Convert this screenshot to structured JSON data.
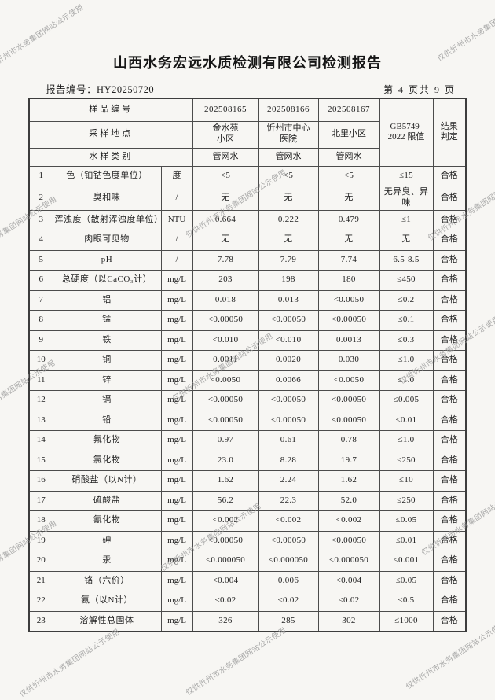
{
  "title": "山西水务宏远水质检测有限公司检测报告",
  "report": {
    "label": "报告编号：",
    "number": "HY20250720"
  },
  "page_indicator": "第 4 页共 9 页",
  "watermark": {
    "text": "仅供忻州市水务集团网站公示使用"
  },
  "table": {
    "header": {
      "sample_id_label": "样品编号",
      "sampling_site_label": "采样地点",
      "water_type_label": "水样类别",
      "sample_ids": [
        "202508165",
        "202508166",
        "202508167"
      ],
      "sites": [
        "金水苑\n小区",
        "忻州市中心\n医院",
        "北里小区"
      ],
      "types": [
        "管网水",
        "管网水",
        "管网水"
      ],
      "limit_header": "GB5749-\n2022 限值",
      "verdict_header": "结果\n判定"
    },
    "rows": [
      {
        "no": "1",
        "name": "色（铂钴色度单位）",
        "unit": "度",
        "values": [
          "<5",
          "<5",
          "<5"
        ],
        "limit": "≤15",
        "verdict": "合格"
      },
      {
        "no": "2",
        "name": "臭和味",
        "unit": "/",
        "values": [
          "无",
          "无",
          "无"
        ],
        "limit": "无异臭、异味",
        "verdict": "合格"
      },
      {
        "no": "3",
        "name": "浑浊度（散射浑浊度单位）",
        "unit": "NTU",
        "values": [
          "0.664",
          "0.222",
          "0.479"
        ],
        "limit": "≤1",
        "verdict": "合格"
      },
      {
        "no": "4",
        "name": "肉眼可见物",
        "unit": "/",
        "values": [
          "无",
          "无",
          "无"
        ],
        "limit": "无",
        "verdict": "合格"
      },
      {
        "no": "5",
        "name": "pH",
        "unit": "/",
        "values": [
          "7.78",
          "7.79",
          "7.74"
        ],
        "limit": "6.5-8.5",
        "verdict": "合格"
      },
      {
        "no": "6",
        "name": "总硬度（以CaCO₃计）",
        "unit": "mg/L",
        "values": [
          "203",
          "198",
          "180"
        ],
        "limit": "≤450",
        "verdict": "合格"
      },
      {
        "no": "7",
        "name": "铝",
        "unit": "mg/L",
        "values": [
          "0.018",
          "0.013",
          "<0.0050"
        ],
        "limit": "≤0.2",
        "verdict": "合格"
      },
      {
        "no": "8",
        "name": "锰",
        "unit": "mg/L",
        "values": [
          "<0.00050",
          "<0.00050",
          "<0.00050"
        ],
        "limit": "≤0.1",
        "verdict": "合格"
      },
      {
        "no": "9",
        "name": "铁",
        "unit": "mg/L",
        "values": [
          "<0.010",
          "<0.010",
          "0.0013"
        ],
        "limit": "≤0.3",
        "verdict": "合格"
      },
      {
        "no": "10",
        "name": "铜",
        "unit": "mg/L",
        "values": [
          "0.0011",
          "0.0020",
          "0.030"
        ],
        "limit": "≤1.0",
        "verdict": "合格"
      },
      {
        "no": "11",
        "name": "锌",
        "unit": "mg/L",
        "values": [
          "<0.0050",
          "0.0066",
          "<0.0050"
        ],
        "limit": "≤1.0",
        "verdict": "合格"
      },
      {
        "no": "12",
        "name": "镉",
        "unit": "mg/L",
        "values": [
          "<0.00050",
          "<0.00050",
          "<0.00050"
        ],
        "limit": "≤0.005",
        "verdict": "合格"
      },
      {
        "no": "13",
        "name": "铅",
        "unit": "mg/L",
        "values": [
          "<0.00050",
          "<0.00050",
          "<0.00050"
        ],
        "limit": "≤0.01",
        "verdict": "合格"
      },
      {
        "no": "14",
        "name": "氟化物",
        "unit": "mg/L",
        "values": [
          "0.97",
          "0.61",
          "0.78"
        ],
        "limit": "≤1.0",
        "verdict": "合格"
      },
      {
        "no": "15",
        "name": "氯化物",
        "unit": "mg/L",
        "values": [
          "23.0",
          "8.28",
          "19.7"
        ],
        "limit": "≤250",
        "verdict": "合格"
      },
      {
        "no": "16",
        "name": "硝酸盐（以N计）",
        "unit": "mg/L",
        "values": [
          "1.62",
          "2.24",
          "1.62"
        ],
        "limit": "≤10",
        "verdict": "合格"
      },
      {
        "no": "17",
        "name": "硫酸盐",
        "unit": "mg/L",
        "values": [
          "56.2",
          "22.3",
          "52.0"
        ],
        "limit": "≤250",
        "verdict": "合格"
      },
      {
        "no": "18",
        "name": "氰化物",
        "unit": "mg/L",
        "values": [
          "<0.002",
          "<0.002",
          "<0.002"
        ],
        "limit": "≤0.05",
        "verdict": "合格"
      },
      {
        "no": "19",
        "name": "砷",
        "unit": "mg/L",
        "values": [
          "<0.00050",
          "<0.00050",
          "<0.00050"
        ],
        "limit": "≤0.01",
        "verdict": "合格"
      },
      {
        "no": "20",
        "name": "汞",
        "unit": "mg/L",
        "values": [
          "<0.000050",
          "<0.000050",
          "<0.000050"
        ],
        "limit": "≤0.001",
        "verdict": "合格"
      },
      {
        "no": "21",
        "name": "铬（六价）",
        "unit": "mg/L",
        "values": [
          "<0.004",
          "0.006",
          "<0.004"
        ],
        "limit": "≤0.05",
        "verdict": "合格"
      },
      {
        "no": "22",
        "name": "氨（以N计）",
        "unit": "mg/L",
        "values": [
          "<0.02",
          "<0.02",
          "<0.02"
        ],
        "limit": "≤0.5",
        "verdict": "合格"
      },
      {
        "no": "23",
        "name": "溶解性总固体",
        "unit": "mg/L",
        "values": [
          "326",
          "285",
          "302"
        ],
        "limit": "≤1000",
        "verdict": "合格"
      }
    ]
  }
}
